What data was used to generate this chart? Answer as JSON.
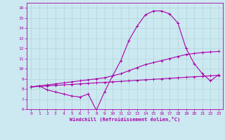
{
  "xlabel": "Windchill (Refroidissement éolien,°C)",
  "background_color": "#cce8f0",
  "line_color": "#aa00aa",
  "grid_color": "#b0d8d8",
  "xlim": [
    -0.5,
    23.5
  ],
  "ylim": [
    6,
    16.5
  ],
  "xticks": [
    0,
    1,
    2,
    3,
    4,
    5,
    6,
    7,
    8,
    9,
    10,
    11,
    12,
    13,
    14,
    15,
    16,
    17,
    18,
    19,
    20,
    21,
    22,
    23
  ],
  "yticks": [
    6,
    7,
    8,
    9,
    10,
    11,
    12,
    13,
    14,
    15,
    16
  ],
  "line1_x": [
    0,
    1,
    2,
    3,
    4,
    5,
    6,
    7,
    8,
    9,
    10,
    11,
    12,
    13,
    14,
    15,
    16,
    17,
    18,
    19,
    20,
    21,
    22,
    23
  ],
  "line1_y": [
    8.2,
    8.3,
    7.9,
    7.7,
    7.5,
    7.3,
    7.2,
    7.5,
    5.9,
    7.7,
    9.3,
    10.8,
    12.8,
    14.2,
    15.3,
    15.7,
    15.7,
    15.4,
    14.5,
    12.0,
    10.5,
    9.5,
    8.8,
    9.4
  ],
  "line2_x": [
    0,
    1,
    2,
    3,
    4,
    5,
    6,
    7,
    8,
    9,
    10,
    11,
    12,
    13,
    14,
    15,
    16,
    17,
    18,
    19,
    20,
    21,
    22,
    23
  ],
  "line2_y": [
    8.2,
    8.25,
    8.3,
    8.35,
    8.4,
    8.45,
    8.5,
    8.55,
    8.6,
    8.65,
    8.7,
    8.75,
    8.8,
    8.85,
    8.9,
    8.95,
    9.0,
    9.05,
    9.1,
    9.15,
    9.2,
    9.25,
    9.3,
    9.35
  ],
  "line3_x": [
    0,
    1,
    2,
    3,
    4,
    5,
    6,
    7,
    8,
    9,
    10,
    11,
    12,
    13,
    14,
    15,
    16,
    17,
    18,
    19,
    20,
    21,
    22,
    23
  ],
  "line3_y": [
    8.2,
    8.3,
    8.4,
    8.5,
    8.6,
    8.7,
    8.8,
    8.9,
    9.0,
    9.1,
    9.3,
    9.5,
    9.8,
    10.1,
    10.4,
    10.6,
    10.8,
    11.0,
    11.2,
    11.4,
    11.5,
    11.6,
    11.65,
    11.7
  ]
}
